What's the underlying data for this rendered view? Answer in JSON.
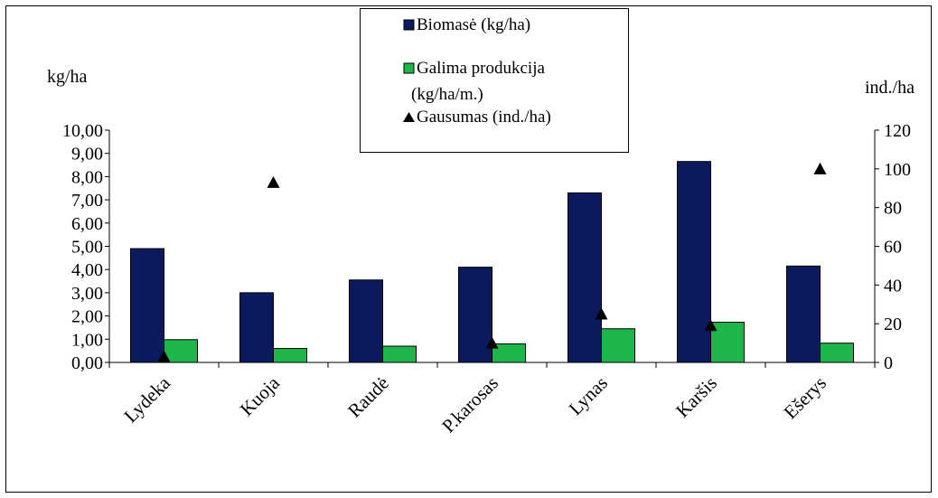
{
  "chart_data": {
    "type": "bar",
    "categories": [
      "Lydeka",
      "Kuoja",
      "Raudė",
      "P.karosas",
      "Lynas",
      "Karšis",
      "Ešerys"
    ],
    "series": [
      {
        "name": "Biomasė (kg/ha)",
        "axis": "left",
        "kind": "bar",
        "color": "#0A1A5C",
        "values": [
          4.9,
          3.0,
          3.55,
          4.1,
          7.3,
          8.65,
          4.15
        ]
      },
      {
        "name": "Galima produkcija (kg/ha/m.)",
        "axis": "left",
        "kind": "bar",
        "color": "#1FB54A",
        "values": [
          0.98,
          0.6,
          0.7,
          0.8,
          1.45,
          1.73,
          0.83
        ]
      },
      {
        "name": "Gausumas (ind./ha)",
        "axis": "right",
        "kind": "scatter",
        "marker": "triangle",
        "color": "#000000",
        "values": [
          3,
          93,
          null,
          10,
          25,
          19,
          100
        ]
      }
    ],
    "ylabel": "kg/ha",
    "y2label": "ind./ha",
    "ylim": [
      0,
      10
    ],
    "y2lim": [
      0,
      120
    ],
    "yticks": [
      "0,00",
      "1,00",
      "2,00",
      "3,00",
      "4,00",
      "5,00",
      "6,00",
      "7,00",
      "8,00",
      "9,00",
      "10,00"
    ],
    "y2ticks": [
      "0",
      "20",
      "40",
      "60",
      "80",
      "100",
      "120"
    ],
    "legend_position": "top-center",
    "grid": false
  }
}
